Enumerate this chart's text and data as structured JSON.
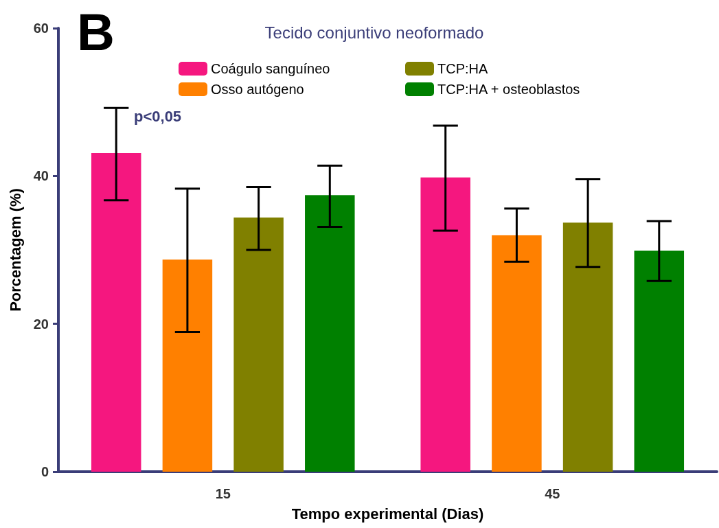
{
  "chart_data": {
    "type": "bar",
    "title": "Tecido conjuntivo neoformado",
    "xlabel": "Tempo experimental (Dias)",
    "ylabel": "Porcentagem (%)",
    "categories": [
      "15",
      "45"
    ],
    "series": [
      {
        "name": "Coágulo sanguíneo",
        "color": "#f5177f",
        "values": [
          43.1,
          39.8
        ],
        "errors": [
          [
            36.7,
            49.2
          ],
          [
            32.6,
            46.8
          ]
        ]
      },
      {
        "name": "Osso autógeno",
        "color": "#ff8000",
        "values": [
          28.7,
          32.0
        ],
        "errors": [
          [
            18.9,
            38.3
          ],
          [
            28.4,
            35.6
          ]
        ]
      },
      {
        "name": "TCP:HA",
        "color": "#808000",
        "values": [
          34.4,
          33.7
        ],
        "errors": [
          [
            30.0,
            38.5
          ],
          [
            27.7,
            39.6
          ]
        ]
      },
      {
        "name": "TCP:HA + osteoblastos",
        "color": "#008000",
        "values": [
          37.4,
          29.9
        ],
        "errors": [
          [
            33.1,
            41.4
          ],
          [
            25.8,
            33.9
          ]
        ]
      }
    ],
    "ylim": [
      0,
      60
    ],
    "yticks": [
      0,
      20,
      40,
      60
    ],
    "grid": false,
    "legend": "top",
    "annotations": [
      "B",
      "p<0,05"
    ]
  }
}
